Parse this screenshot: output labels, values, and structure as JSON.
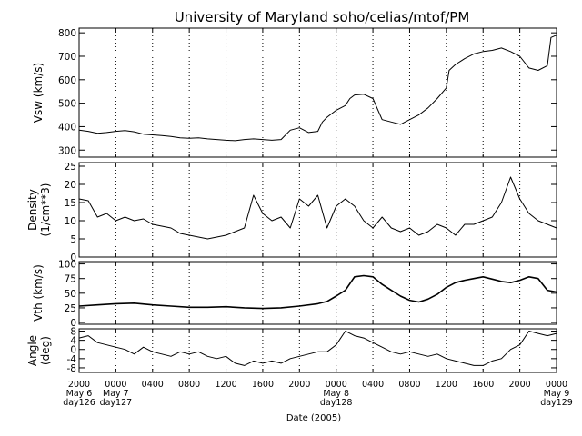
{
  "chart_data": {
    "type": "line",
    "title": "University of Maryland  soho/celias/mtof/PM",
    "xlabel": "Date (2005)",
    "grid": "vertical dotted lines at 4-hour intervals",
    "x_ticks": [
      {
        "hour": 0,
        "labels": [
          "2000",
          "May 6",
          "day126"
        ]
      },
      {
        "hour": 4,
        "labels": [
          "0000",
          "May 7",
          "day127"
        ]
      },
      {
        "hour": 8,
        "labels": [
          "0400"
        ]
      },
      {
        "hour": 12,
        "labels": [
          "0800"
        ]
      },
      {
        "hour": 16,
        "labels": [
          "1200"
        ]
      },
      {
        "hour": 20,
        "labels": [
          "1600"
        ]
      },
      {
        "hour": 24,
        "labels": [
          "2000"
        ]
      },
      {
        "hour": 28,
        "labels": [
          "0000",
          "May 8",
          "day128"
        ]
      },
      {
        "hour": 32,
        "labels": [
          "0400"
        ]
      },
      {
        "hour": 36,
        "labels": [
          "0800"
        ]
      },
      {
        "hour": 40,
        "labels": [
          "1200"
        ]
      },
      {
        "hour": 44,
        "labels": [
          "1600"
        ]
      },
      {
        "hour": 48,
        "labels": [
          "2000"
        ]
      },
      {
        "hour": 52,
        "labels": [
          "0000",
          "May 9",
          "day129"
        ]
      }
    ],
    "xlim": [
      0,
      52
    ],
    "panels": [
      {
        "ylabel": [
          "Vsw (km/s)"
        ],
        "ylim": [
          270,
          820
        ],
        "yticks": [
          300,
          400,
          500,
          600,
          700,
          800
        ],
        "ytick_labels": [
          "300",
          "400",
          "500",
          "600",
          "700",
          "800"
        ],
        "series": [
          {
            "points": [
              [
                0,
                385
              ],
              [
                1,
                380
              ],
              [
                2,
                372
              ],
              [
                3,
                375
              ],
              [
                4,
                380
              ],
              [
                5,
                383
              ],
              [
                6,
                378
              ],
              [
                7,
                368
              ],
              [
                8,
                365
              ],
              [
                9,
                362
              ],
              [
                10,
                358
              ],
              [
                11,
                352
              ],
              [
                12,
                350
              ],
              [
                13,
                352
              ],
              [
                14,
                348
              ],
              [
                15,
                345
              ],
              [
                16,
                342
              ],
              [
                17,
                340
              ],
              [
                18,
                345
              ],
              [
                19,
                348
              ],
              [
                20,
                345
              ],
              [
                21,
                342
              ],
              [
                22,
                345
              ],
              [
                23,
                385
              ],
              [
                24,
                395
              ],
              [
                25,
                375
              ],
              [
                26,
                380
              ],
              [
                26.5,
                420
              ],
              [
                27,
                440
              ],
              [
                28,
                470
              ],
              [
                29,
                490
              ],
              [
                29.5,
                520
              ],
              [
                30,
                535
              ],
              [
                31,
                538
              ],
              [
                32,
                520
              ],
              [
                33,
                430
              ],
              [
                34,
                420
              ],
              [
                35,
                410
              ],
              [
                36,
                430
              ],
              [
                37,
                450
              ],
              [
                38,
                480
              ],
              [
                39,
                520
              ],
              [
                40,
                565
              ],
              [
                40.3,
                640
              ],
              [
                41,
                665
              ],
              [
                42,
                690
              ],
              [
                43,
                710
              ],
              [
                44,
                720
              ],
              [
                45,
                725
              ],
              [
                46,
                735
              ],
              [
                47,
                720
              ],
              [
                48,
                700
              ],
              [
                49,
                650
              ],
              [
                50,
                640
              ],
              [
                51,
                660
              ],
              [
                51.4,
                780
              ],
              [
                52,
                790
              ],
              [
                53,
                785
              ],
              [
                54,
                785
              ]
            ]
          }
        ]
      },
      {
        "ylabel": [
          "Density",
          "(1/cm**3)"
        ],
        "ylim": [
          0,
          26
        ],
        "yticks": [
          0,
          5,
          10,
          15,
          20,
          25
        ],
        "ytick_labels": [
          "0",
          "5",
          "10",
          "15",
          "20",
          "25"
        ],
        "series": [
          {
            "points": [
              [
                0,
                16
              ],
              [
                1,
                15.5
              ],
              [
                2,
                11
              ],
              [
                3,
                12
              ],
              [
                4,
                10
              ],
              [
                5,
                11
              ],
              [
                6,
                10
              ],
              [
                7,
                10.5
              ],
              [
                8,
                9
              ],
              [
                9,
                8.5
              ],
              [
                10,
                8
              ],
              [
                11,
                6.5
              ],
              [
                12,
                6
              ],
              [
                13,
                5.5
              ],
              [
                14,
                5
              ],
              [
                15,
                5.5
              ],
              [
                16,
                6
              ],
              [
                17,
                7
              ],
              [
                18,
                8
              ],
              [
                19,
                17
              ],
              [
                20,
                12
              ],
              [
                21,
                10
              ],
              [
                22,
                11
              ],
              [
                23,
                8
              ],
              [
                24,
                16
              ],
              [
                25,
                14
              ],
              [
                26,
                17
              ],
              [
                27,
                8
              ],
              [
                28,
                14
              ],
              [
                29,
                16
              ],
              [
                30,
                14
              ],
              [
                31,
                10
              ],
              [
                32,
                8
              ],
              [
                33,
                11
              ],
              [
                34,
                8
              ],
              [
                35,
                7
              ],
              [
                36,
                8
              ],
              [
                37,
                6
              ],
              [
                38,
                7
              ],
              [
                39,
                9
              ],
              [
                40,
                8
              ],
              [
                41,
                6
              ],
              [
                42,
                9
              ],
              [
                43,
                9
              ],
              [
                44,
                10
              ],
              [
                45,
                11
              ],
              [
                46,
                15
              ],
              [
                47,
                22
              ],
              [
                48,
                16
              ],
              [
                49,
                12
              ],
              [
                50,
                10
              ],
              [
                51,
                9
              ],
              [
                52,
                8
              ],
              [
                53,
                9
              ],
              [
                54,
                9
              ]
            ]
          }
        ]
      },
      {
        "ylabel": [
          "Vth (km/s)"
        ],
        "ylim": [
          -3,
          104
        ],
        "yticks": [
          0,
          25,
          50,
          75,
          100
        ],
        "ytick_labels": [
          "0",
          "25",
          "50",
          "75",
          "100"
        ],
        "series": [
          {
            "points": [
              [
                0,
                28
              ],
              [
                2,
                30
              ],
              [
                4,
                32
              ],
              [
                6,
                33
              ],
              [
                8,
                30
              ],
              [
                10,
                28
              ],
              [
                12,
                26
              ],
              [
                14,
                26
              ],
              [
                16,
                27
              ],
              [
                18,
                25
              ],
              [
                20,
                24
              ],
              [
                22,
                25
              ],
              [
                24,
                28
              ],
              [
                26,
                32
              ],
              [
                27,
                36
              ],
              [
                28,
                45
              ],
              [
                29,
                55
              ],
              [
                30,
                78
              ],
              [
                31,
                80
              ],
              [
                32,
                78
              ],
              [
                33,
                65
              ],
              [
                34,
                55
              ],
              [
                35,
                45
              ],
              [
                36,
                38
              ],
              [
                37,
                35
              ],
              [
                38,
                40
              ],
              [
                39,
                48
              ],
              [
                40,
                60
              ],
              [
                41,
                68
              ],
              [
                42,
                72
              ],
              [
                43,
                75
              ],
              [
                44,
                78
              ],
              [
                45,
                74
              ],
              [
                46,
                70
              ],
              [
                47,
                68
              ],
              [
                48,
                72
              ],
              [
                49,
                78
              ],
              [
                50,
                75
              ],
              [
                51,
                55
              ],
              [
                52,
                52
              ],
              [
                53,
                50
              ],
              [
                54,
                50
              ]
            ]
          }
        ]
      },
      {
        "ylabel": [
          "Angle",
          "(deg)"
        ],
        "ylim": [
          -10,
          9
        ],
        "yticks": [
          -8,
          -4,
          0,
          4,
          8
        ],
        "ytick_labels": [
          "-8",
          "-4",
          "0",
          "4",
          "8"
        ],
        "series": [
          {
            "points": [
              [
                0,
                5
              ],
              [
                1,
                6
              ],
              [
                2,
                3
              ],
              [
                3,
                2
              ],
              [
                4,
                1
              ],
              [
                5,
                0
              ],
              [
                6,
                -2
              ],
              [
                7,
                1
              ],
              [
                8,
                -1
              ],
              [
                9,
                -2
              ],
              [
                10,
                -3
              ],
              [
                11,
                -1
              ],
              [
                12,
                -2
              ],
              [
                13,
                -1
              ],
              [
                14,
                -3
              ],
              [
                15,
                -4
              ],
              [
                16,
                -3
              ],
              [
                17,
                -6
              ],
              [
                18,
                -7
              ],
              [
                19,
                -5
              ],
              [
                20,
                -6
              ],
              [
                21,
                -5
              ],
              [
                22,
                -6
              ],
              [
                23,
                -4
              ],
              [
                24,
                -3
              ],
              [
                25,
                -2
              ],
              [
                26,
                -1
              ],
              [
                27,
                -1
              ],
              [
                28,
                2
              ],
              [
                29,
                8
              ],
              [
                30,
                6
              ],
              [
                31,
                5
              ],
              [
                32,
                3
              ],
              [
                33,
                1
              ],
              [
                34,
                -1
              ],
              [
                35,
                -2
              ],
              [
                36,
                -1
              ],
              [
                37,
                -2
              ],
              [
                38,
                -3
              ],
              [
                39,
                -2
              ],
              [
                40,
                -4
              ],
              [
                41,
                -5
              ],
              [
                42,
                -6
              ],
              [
                43,
                -7
              ],
              [
                44,
                -7
              ],
              [
                45,
                -5
              ],
              [
                46,
                -4
              ],
              [
                47,
                0
              ],
              [
                48,
                2
              ],
              [
                49,
                8
              ],
              [
                50,
                7
              ],
              [
                51,
                6
              ],
              [
                52,
                7
              ],
              [
                53,
                8
              ],
              [
                54,
                8
              ]
            ]
          }
        ]
      }
    ]
  }
}
